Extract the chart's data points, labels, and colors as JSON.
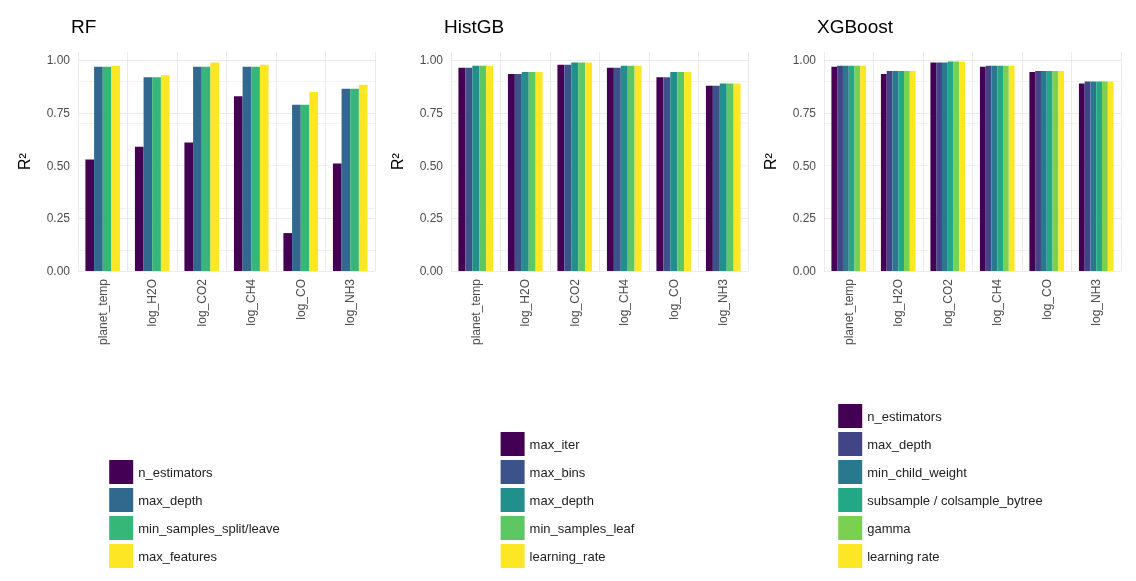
{
  "chart_data": [
    {
      "type": "bar",
      "title": "RF",
      "ylabel": "R²",
      "categories": [
        "planet_temp",
        "log_H2O",
        "log_CO2",
        "log_CH4",
        "log_CO",
        "log_NH3"
      ],
      "ylim": [
        0,
        1.04
      ],
      "yticks": [
        {
          "value": 0,
          "label": "0.00"
        },
        {
          "value": 0.25,
          "label": "0.25"
        },
        {
          "value": 0.5,
          "label": "0.50"
        },
        {
          "value": 0.75,
          "label": "0.75"
        },
        {
          "value": 1,
          "label": "1.00"
        }
      ],
      "grid": true,
      "legend": "bottom",
      "series": [
        {
          "name": "n_estimators",
          "color": "#440154",
          "values": [
            0.53,
            0.59,
            0.61,
            0.83,
            0.18,
            0.51
          ]
        },
        {
          "name": "max_depth",
          "color": "#31688e",
          "values": [
            0.97,
            0.92,
            0.97,
            0.97,
            0.79,
            0.865
          ]
        },
        {
          "name": "min_samples_split/leave",
          "color": "#35b779",
          "values": [
            0.97,
            0.92,
            0.97,
            0.97,
            0.79,
            0.865
          ]
        },
        {
          "name": "max_features",
          "color": "#fde725",
          "values": [
            0.975,
            0.93,
            0.99,
            0.98,
            0.85,
            0.885
          ]
        }
      ]
    },
    {
      "type": "bar",
      "title": "HistGB",
      "ylabel": "R²",
      "categories": [
        "planet_temp",
        "log_H2O",
        "log_CO2",
        "log_CH4",
        "log_CO",
        "log_NH3"
      ],
      "ylim": [
        0,
        1.04
      ],
      "yticks": [
        {
          "value": 0,
          "label": "0.00"
        },
        {
          "value": 0.25,
          "label": "0.25"
        },
        {
          "value": 0.5,
          "label": "0.50"
        },
        {
          "value": 0.75,
          "label": "0.75"
        },
        {
          "value": 1,
          "label": "1.00"
        }
      ],
      "grid": true,
      "legend": "bottom",
      "series": [
        {
          "name": "max_iter",
          "color": "#440154",
          "values": [
            0.965,
            0.935,
            0.98,
            0.965,
            0.92,
            0.88
          ]
        },
        {
          "name": "max_bins",
          "color": "#3b528b",
          "values": [
            0.965,
            0.935,
            0.98,
            0.965,
            0.92,
            0.88
          ]
        },
        {
          "name": "max_depth",
          "color": "#21908c",
          "values": [
            0.975,
            0.945,
            0.99,
            0.975,
            0.945,
            0.89
          ]
        },
        {
          "name": "min_samples_leaf",
          "color": "#5dc863",
          "values": [
            0.975,
            0.945,
            0.99,
            0.975,
            0.945,
            0.89
          ]
        },
        {
          "name": "learning_rate",
          "color": "#fde725",
          "values": [
            0.975,
            0.945,
            0.99,
            0.975,
            0.945,
            0.89
          ]
        }
      ]
    },
    {
      "type": "bar",
      "title": "XGBoost",
      "ylabel": "R²",
      "categories": [
        "planet_temp",
        "log_H2O",
        "log_CO2",
        "log_CH4",
        "log_CO",
        "log_NH3"
      ],
      "ylim": [
        0,
        1.04
      ],
      "yticks": [
        {
          "value": 0,
          "label": "0.00"
        },
        {
          "value": 0.25,
          "label": "0.25"
        },
        {
          "value": 0.5,
          "label": "0.50"
        },
        {
          "value": 0.75,
          "label": "0.75"
        },
        {
          "value": 1,
          "label": "1.00"
        }
      ],
      "grid": true,
      "legend": "bottom",
      "series": [
        {
          "name": "n_estimators",
          "color": "#440154",
          "values": [
            0.97,
            0.935,
            0.99,
            0.97,
            0.945,
            0.89
          ]
        },
        {
          "name": "max_depth",
          "color": "#414487",
          "values": [
            0.975,
            0.95,
            0.99,
            0.975,
            0.95,
            0.9
          ]
        },
        {
          "name": "min_child_weight",
          "color": "#2a788e",
          "values": [
            0.975,
            0.95,
            0.99,
            0.975,
            0.95,
            0.9
          ]
        },
        {
          "name": "subsample / colsample_bytree",
          "color": "#22a884",
          "values": [
            0.975,
            0.95,
            0.995,
            0.975,
            0.95,
            0.9
          ]
        },
        {
          "name": "gamma",
          "color": "#7ad151",
          "values": [
            0.975,
            0.95,
            0.995,
            0.975,
            0.95,
            0.9
          ]
        },
        {
          "name": "learning rate",
          "color": "#fde725",
          "values": [
            0.975,
            0.95,
            0.995,
            0.975,
            0.95,
            0.9
          ]
        }
      ]
    }
  ]
}
